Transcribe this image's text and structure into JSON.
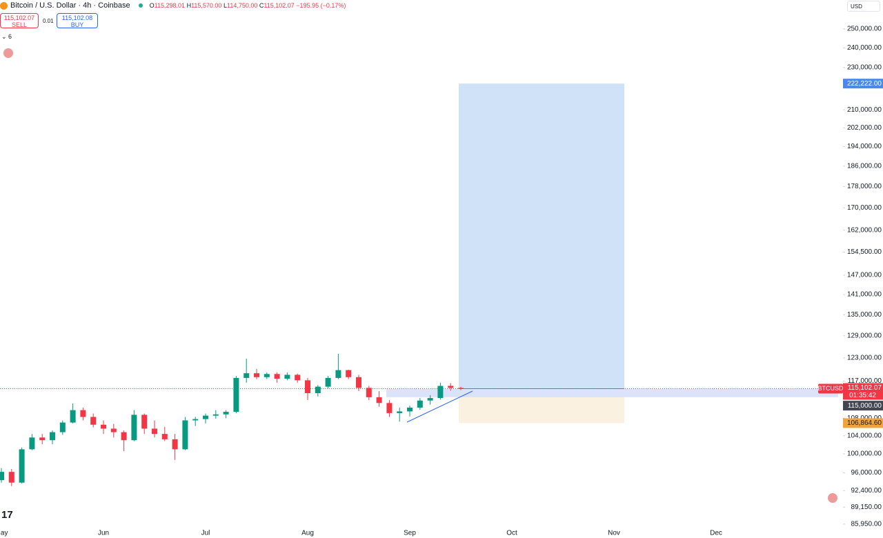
{
  "header": {
    "symbol": "Bitcoin / U.S. Dollar · 4h · Coinbase",
    "ohlc": [
      {
        "key": "O",
        "value": "115,298.01"
      },
      {
        "key": "H",
        "value": "115,570.00"
      },
      {
        "key": "L",
        "value": "114,750.00"
      },
      {
        "key": "C",
        "value": "115,102.07"
      }
    ],
    "change": "−195.95 (−0.17%)",
    "sell": {
      "price": "115,102.07",
      "label": "SELL"
    },
    "spread": "0.01",
    "buy": {
      "price": "115,102.08",
      "label": "BUY"
    },
    "indicators": "6",
    "currency": "USD"
  },
  "chart_data": {
    "type": "candlestick",
    "log_scale": true,
    "grid": false,
    "up_color": "#089981",
    "down_color": "#f23645",
    "categories": [
      "May",
      null,
      null,
      null,
      null,
      null,
      null,
      null,
      null,
      null,
      "Jun",
      null,
      null,
      null,
      null,
      null,
      null,
      null,
      null,
      null,
      "Jul",
      null,
      null,
      null,
      null,
      null,
      null,
      null,
      null,
      null,
      "Aug",
      null,
      null,
      null,
      null,
      null,
      null,
      null,
      null,
      null,
      "Sep",
      null,
      null,
      null,
      null,
      null,
      null,
      null,
      null,
      null,
      "Oct",
      null,
      null,
      null,
      null,
      null,
      null,
      null,
      null,
      null,
      "Nov",
      null,
      null,
      null,
      null,
      null,
      null,
      null,
      null,
      null,
      "Dec",
      null,
      null,
      null,
      null,
      null,
      null,
      null,
      null,
      null,
      null,
      null
    ],
    "open": [
      94500,
      96200,
      94000,
      101000,
      103600,
      103000,
      104800,
      107000,
      109900,
      108300,
      106500,
      105600,
      104800,
      103000,
      108800,
      105600,
      104400,
      103200,
      101000,
      107500,
      107800,
      108600,
      108900,
      109500,
      117800,
      119000,
      118000,
      118800,
      117600,
      118600,
      117200,
      114000,
      115600,
      117800,
      119800,
      118000,
      115300,
      113000,
      111600,
      109200,
      109600,
      110500,
      112200,
      112800,
      115800,
      115298.01,
      null,
      null,
      null,
      null,
      null,
      null,
      null,
      null,
      null,
      null,
      null,
      null,
      null,
      null,
      null,
      null,
      null,
      null,
      null,
      null,
      null,
      null,
      null,
      null,
      null,
      null,
      null,
      null,
      null,
      null,
      null,
      null,
      null,
      null,
      null,
      null
    ],
    "high": [
      97000,
      96800,
      101400,
      104400,
      104400,
      105200,
      107500,
      111500,
      110500,
      109100,
      107500,
      106700,
      105200,
      109900,
      109100,
      107500,
      106000,
      104400,
      108300,
      108300,
      109100,
      109900,
      109900,
      118300,
      122800,
      120100,
      119200,
      119200,
      119200,
      118900,
      117800,
      116000,
      118300,
      124100,
      119900,
      118600,
      115800,
      114500,
      112300,
      110500,
      111000,
      112800,
      113500,
      116600,
      116500,
      115570,
      null,
      null,
      null,
      null,
      null,
      null,
      null,
      null,
      null,
      null,
      null,
      null,
      null,
      null,
      null,
      null,
      null,
      null,
      null,
      null,
      null,
      null,
      null,
      null,
      null,
      null,
      null,
      null,
      null,
      null,
      null,
      null,
      null,
      null,
      null,
      null
    ],
    "low": [
      94000,
      93300,
      93800,
      100800,
      102100,
      102100,
      104200,
      106800,
      107500,
      105900,
      104400,
      103600,
      100600,
      102800,
      104400,
      103600,
      102800,
      98700,
      100800,
      106200,
      106800,
      107900,
      108000,
      109200,
      116600,
      117500,
      117500,
      116600,
      117200,
      116600,
      112300,
      113200,
      115200,
      117500,
      117500,
      114500,
      112300,
      110700,
      108300,
      107200,
      108400,
      110000,
      111200,
      112400,
      114600,
      114750,
      null,
      null,
      null,
      null,
      null,
      null,
      null,
      null,
      null,
      null,
      null,
      null,
      null,
      null,
      null,
      null,
      null,
      null,
      null,
      null,
      null,
      null,
      null,
      null,
      null,
      null,
      null,
      null,
      null,
      null,
      null,
      null,
      null,
      null,
      null,
      null
    ],
    "close": [
      96200,
      94000,
      101000,
      103600,
      103000,
      104800,
      107000,
      109900,
      108300,
      106500,
      105600,
      104800,
      103000,
      108800,
      105600,
      104400,
      103200,
      101000,
      107500,
      107800,
      108600,
      108900,
      109500,
      117800,
      119000,
      118000,
      118800,
      117600,
      118600,
      117200,
      114000,
      115600,
      117800,
      119800,
      118000,
      115300,
      113000,
      111600,
      109200,
      109600,
      110500,
      112200,
      112800,
      115800,
      115300,
      115102.07,
      null,
      null,
      null,
      null,
      null,
      null,
      null,
      null,
      null,
      null,
      null,
      null,
      null,
      null,
      null,
      null,
      null,
      null,
      null,
      null,
      null,
      null,
      null,
      null,
      null,
      null,
      null,
      null,
      null,
      null,
      null,
      null,
      null,
      null,
      null,
      null
    ],
    "ylim": [
      85300,
      266100
    ],
    "yticks": [
      {
        "value": 250000,
        "label": "250,000.00"
      },
      {
        "value": 240000,
        "label": "240,000.00"
      },
      {
        "value": 230000,
        "label": "230,000.00"
      },
      {
        "value": 210000,
        "label": "210,000.00"
      },
      {
        "value": 202000,
        "label": "202,000.00"
      },
      {
        "value": 194000,
        "label": "194,000.00"
      },
      {
        "value": 186000,
        "label": "186,000.00"
      },
      {
        "value": 178000,
        "label": "178,000.00"
      },
      {
        "value": 170000,
        "label": "170,000.00"
      },
      {
        "value": 162000,
        "label": "162,000.00"
      },
      {
        "value": 154500,
        "label": "154,500.00"
      },
      {
        "value": 147000,
        "label": "147,000.00"
      },
      {
        "value": 141000,
        "label": "141,000.00"
      },
      {
        "value": 135000,
        "label": "135,000.00"
      },
      {
        "value": 129000,
        "label": "129,000.00"
      },
      {
        "value": 123000,
        "label": "123,000.00"
      },
      {
        "value": 117000,
        "label": "117,000.00"
      },
      {
        "value": 108000,
        "label": "108,000.00"
      },
      {
        "value": 104000,
        "label": "104,000.00"
      },
      {
        "value": 100000,
        "label": "100,000.00"
      },
      {
        "value": 96000,
        "label": "96,000.00"
      },
      {
        "value": 92400,
        "label": "92,400.00"
      },
      {
        "value": 89150,
        "label": "89,150.00"
      },
      {
        "value": 85950,
        "label": "85,950.00"
      }
    ],
    "last_price": {
      "value": 115102.07,
      "label": "115,102.07",
      "symbol": "BTCUSD",
      "countdown": "01:35:42",
      "color": "#f23645"
    },
    "alert_line": {
      "value": 115000,
      "label": "115,000.00",
      "color": "#434651"
    },
    "zone": {
      "low": 113000,
      "high": 115000,
      "color": "#dbe3fb"
    },
    "position": {
      "entry": 115102.07,
      "target": 222222,
      "target_label": "222,222.00",
      "stop": 106864.6,
      "stop_label": "106,864.60",
      "target_color": "#cfe2f8",
      "stop_color": "#fbf1e0",
      "target_tag": "#4a8ae6",
      "stop_tag": "#f0a43c"
    }
  }
}
